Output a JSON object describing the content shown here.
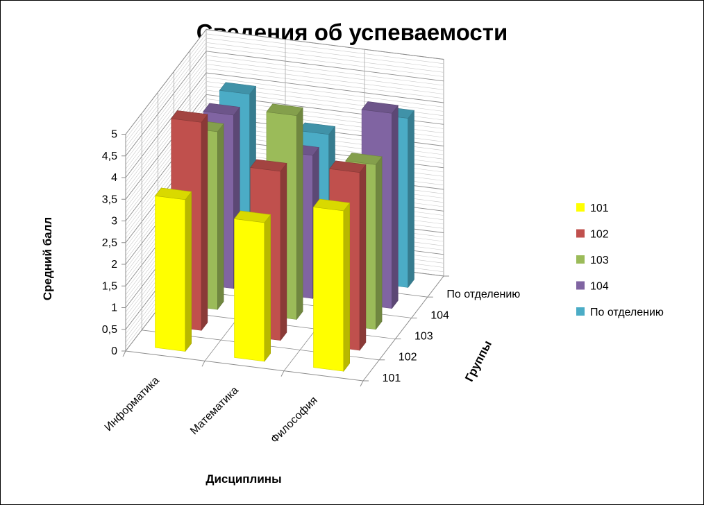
{
  "chart_data": {
    "type": "bar",
    "subtype": "3d-column",
    "title": "Сведения об успеваемости",
    "xlabel": "Дисциплины",
    "ylabel": "Средний балл",
    "zlabel": "Группы",
    "categories": [
      "Информатика",
      "Математика",
      "Философия"
    ],
    "series_axis_labels": [
      "101",
      "102",
      "103",
      "104",
      "По отделению"
    ],
    "ylim": [
      0,
      5
    ],
    "yticks": [
      "0",
      "0,5",
      "1",
      "1,5",
      "2",
      "2,5",
      "3",
      "3,5",
      "4",
      "4,5",
      "5"
    ],
    "grid": true,
    "legend_position": "right",
    "series": [
      {
        "name": "101",
        "color": "#ffff00",
        "values": [
          3.5,
          3.2,
          3.7
        ]
      },
      {
        "name": "102",
        "color": "#c0504d",
        "values": [
          4.8,
          3.9,
          4.1
        ]
      },
      {
        "name": "103",
        "color": "#9bbb59",
        "values": [
          4.1,
          4.7,
          3.8
        ]
      },
      {
        "name": "104",
        "color": "#8064a2",
        "values": [
          4.0,
          3.3,
          4.5
        ]
      },
      {
        "name": "По отделению",
        "color": "#4bacc6",
        "values": [
          4.0,
          3.3,
          3.9
        ]
      }
    ]
  }
}
